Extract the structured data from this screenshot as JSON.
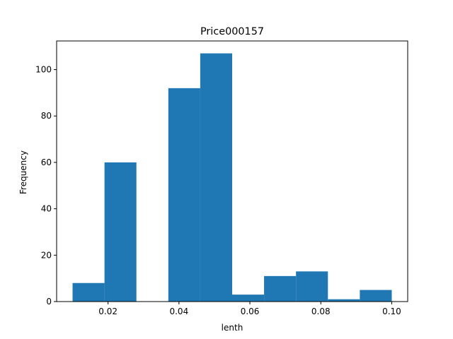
{
  "chart_data": {
    "type": "bar",
    "subtype": "histogram",
    "title": "Price000157",
    "xlabel": "lenth",
    "ylabel": "Frequency",
    "bin_edges": [
      0.01,
      0.019,
      0.028,
      0.037,
      0.046,
      0.055,
      0.064,
      0.073,
      0.082,
      0.091,
      0.1
    ],
    "values": [
      8,
      60,
      0,
      92,
      107,
      3,
      11,
      13,
      1,
      5
    ],
    "xlim": [
      0.0055,
      0.1045
    ],
    "ylim": [
      0,
      112.35
    ],
    "xticks": [
      0.02,
      0.04,
      0.06,
      0.08,
      0.1
    ],
    "xtick_labels": [
      "0.02",
      "0.04",
      "0.06",
      "0.08",
      "0.10"
    ],
    "yticks": [
      0,
      20,
      40,
      60,
      80,
      100
    ],
    "ytick_labels": [
      "0",
      "20",
      "40",
      "60",
      "80",
      "100"
    ],
    "grid": false,
    "bar_color": "#1f77b4"
  }
}
